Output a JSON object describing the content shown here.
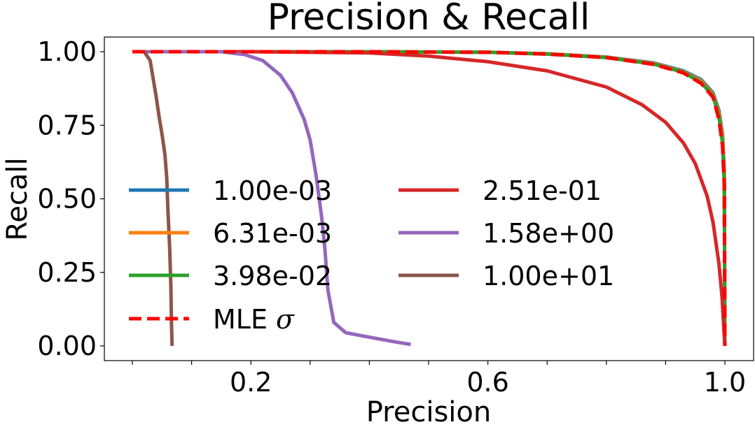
{
  "chart_data": {
    "type": "line",
    "title": "Precision & Recall",
    "xlabel": "Precision",
    "ylabel": "Recall",
    "xlim": [
      0.0,
      1.05
    ],
    "ylim": [
      -0.05,
      1.05
    ],
    "xticks": [
      0.0,
      0.1,
      0.2,
      0.3,
      0.4,
      0.5,
      0.6,
      0.7,
      0.8,
      0.9,
      1.0
    ],
    "xtick_labels": [
      "",
      "",
      "0.2",
      "",
      "",
      "",
      "0.6",
      "",
      "",
      "",
      "1.0"
    ],
    "yticks": [
      0.0,
      0.25,
      0.5,
      0.75,
      1.0
    ],
    "ytick_labels": [
      "0.00",
      "0.25",
      "0.50",
      "0.75",
      "1.00"
    ],
    "grid": false,
    "legend_placement": "center-left, two columns",
    "series": [
      {
        "name": "1.00e-03",
        "color": "#1f77b4",
        "dash": "solid",
        "x": [
          0.0,
          0.2,
          0.4,
          0.6,
          0.7,
          0.8,
          0.88,
          0.93,
          0.96,
          0.98,
          0.99,
          0.996,
          0.999,
          1.0
        ],
        "y": [
          1.0,
          1.0,
          1.0,
          0.998,
          0.993,
          0.982,
          0.962,
          0.935,
          0.905,
          0.86,
          0.8,
          0.72,
          0.6,
          0.0
        ]
      },
      {
        "name": "6.31e-03",
        "color": "#ff7f0e",
        "dash": "solid",
        "x": [
          0.0,
          0.2,
          0.4,
          0.6,
          0.7,
          0.8,
          0.88,
          0.93,
          0.96,
          0.98,
          0.99,
          0.996,
          0.999,
          1.0
        ],
        "y": [
          1.0,
          1.0,
          1.0,
          0.998,
          0.993,
          0.981,
          0.96,
          0.932,
          0.9,
          0.855,
          0.79,
          0.71,
          0.58,
          0.0
        ]
      },
      {
        "name": "3.98e-02",
        "color": "#2ca02c",
        "dash": "solid",
        "x": [
          0.0,
          0.2,
          0.4,
          0.6,
          0.7,
          0.8,
          0.88,
          0.93,
          0.96,
          0.98,
          0.99,
          0.996,
          0.999,
          1.0
        ],
        "y": [
          1.0,
          1.0,
          1.0,
          0.998,
          0.992,
          0.98,
          0.958,
          0.93,
          0.895,
          0.85,
          0.78,
          0.69,
          0.55,
          0.0
        ]
      },
      {
        "name": "2.51e-01",
        "color": "#d62728",
        "dash": "solid",
        "x": [
          0.0,
          0.2,
          0.4,
          0.5,
          0.6,
          0.7,
          0.8,
          0.86,
          0.9,
          0.93,
          0.95,
          0.97,
          0.98,
          0.99,
          0.995,
          1.0
        ],
        "y": [
          1.0,
          1.0,
          0.996,
          0.985,
          0.966,
          0.935,
          0.88,
          0.82,
          0.76,
          0.69,
          0.62,
          0.51,
          0.42,
          0.28,
          0.17,
          0.0
        ]
      },
      {
        "name": "1.58e+00",
        "color": "#9467bd",
        "dash": "solid",
        "x": [
          0.0,
          0.15,
          0.19,
          0.22,
          0.25,
          0.27,
          0.29,
          0.3,
          0.31,
          0.32,
          0.325,
          0.33,
          0.34,
          0.36,
          0.4,
          0.44,
          0.47
        ],
        "y": [
          1.0,
          1.0,
          0.99,
          0.97,
          0.92,
          0.86,
          0.77,
          0.7,
          0.58,
          0.43,
          0.33,
          0.19,
          0.08,
          0.045,
          0.03,
          0.015,
          0.005
        ]
      },
      {
        "name": "1.00e+01",
        "color": "#8c564b",
        "dash": "solid",
        "x": [
          0.0,
          0.02,
          0.03,
          0.035,
          0.04,
          0.045,
          0.05,
          0.055,
          0.058,
          0.06,
          0.063,
          0.065,
          0.066,
          0.067
        ],
        "y": [
          1.0,
          1.0,
          0.97,
          0.91,
          0.85,
          0.78,
          0.72,
          0.65,
          0.57,
          0.46,
          0.33,
          0.2,
          0.08,
          0.0
        ]
      },
      {
        "name": "MLE σ",
        "name_text": "MLE",
        "name_symbol": "σ",
        "color": "#ff0000",
        "dash": "dashed",
        "x": [
          0.0,
          0.2,
          0.4,
          0.6,
          0.7,
          0.8,
          0.88,
          0.93,
          0.96,
          0.98,
          0.99,
          0.996,
          0.999,
          1.0
        ],
        "y": [
          1.0,
          1.0,
          1.0,
          0.998,
          0.992,
          0.98,
          0.957,
          0.928,
          0.892,
          0.845,
          0.77,
          0.68,
          0.54,
          0.0
        ]
      }
    ],
    "legend": {
      "col1": [
        {
          "label": "1.00e-03",
          "color": "#1f77b4",
          "dash": "solid"
        },
        {
          "label": "6.31e-03",
          "color": "#ff7f0e",
          "dash": "solid"
        },
        {
          "label": "3.98e-02",
          "color": "#2ca02c",
          "dash": "solid"
        },
        {
          "label_text": "MLE",
          "label_symbol": "σ",
          "color": "#ff0000",
          "dash": "dashed"
        }
      ],
      "col2": [
        {
          "label": "2.51e-01",
          "color": "#d62728",
          "dash": "solid"
        },
        {
          "label": "1.58e+00",
          "color": "#9467bd",
          "dash": "solid"
        },
        {
          "label": "1.00e+01",
          "color": "#8c564b",
          "dash": "solid"
        }
      ]
    }
  }
}
